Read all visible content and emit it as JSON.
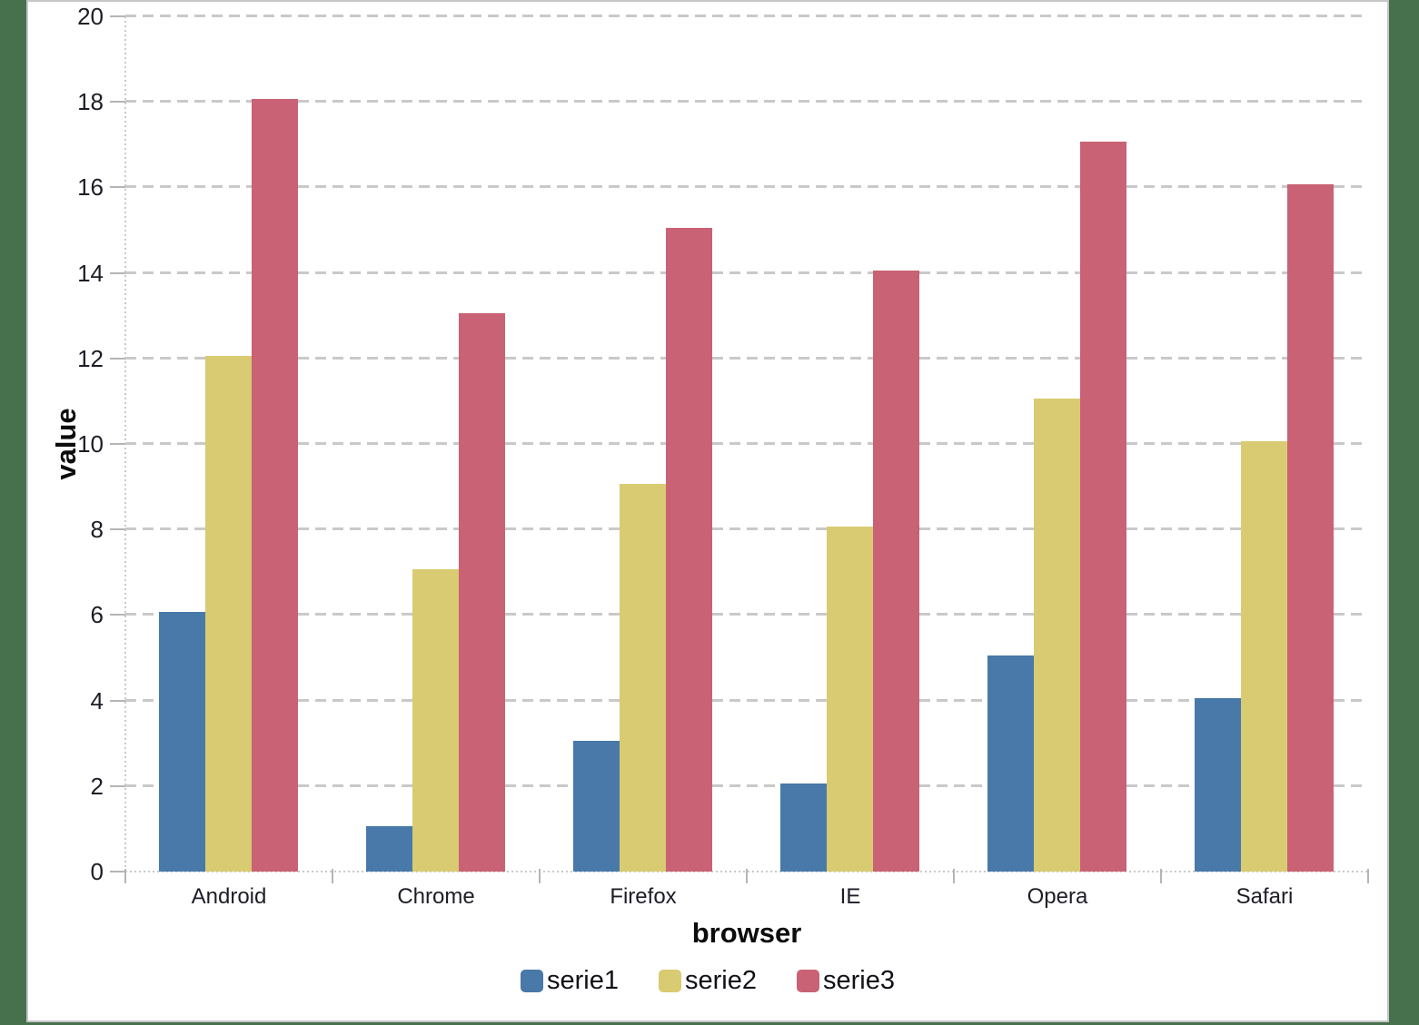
{
  "frame": {
    "background_color": "#47714d",
    "chart_border_color": "#c6c6c6",
    "chart_background_color": "#ffffff"
  },
  "chart_data": {
    "type": "bar",
    "title": "",
    "xlabel": "browser",
    "ylabel": "value",
    "categories": [
      "Android",
      "Chrome",
      "Firefox",
      "IE",
      "Opera",
      "Safari"
    ],
    "series": [
      {
        "name": "serie1",
        "color": "#4879a9",
        "values": [
          6,
          1,
          3,
          2,
          5,
          4
        ]
      },
      {
        "name": "serie2",
        "color": "#d9cb72",
        "values": [
          12,
          7,
          9,
          8,
          11,
          10
        ]
      },
      {
        "name": "serie3",
        "color": "#c96274",
        "values": [
          18,
          13,
          15,
          14,
          17,
          16
        ]
      }
    ],
    "ylim": [
      0,
      20
    ],
    "ytick_step": 2,
    "grid": {
      "horizontal": true,
      "style": "dashed",
      "color": "#c9c9c9"
    },
    "legend": {
      "position": "bottom"
    },
    "text_color": "#1d1d28"
  }
}
